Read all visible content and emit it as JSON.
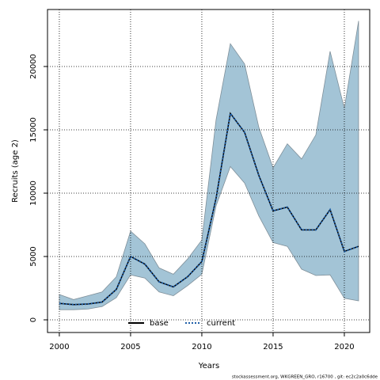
{
  "chart_data": {
    "type": "line",
    "x_label": "Years",
    "y_label": "Recruits (age 2)",
    "footer": "stockassessment.org, WKGREEN_GRO, r16700 , git: ec2c2a0c6dde",
    "x": [
      2000,
      2001,
      2002,
      2003,
      2004,
      2005,
      2006,
      2007,
      2008,
      2009,
      2010,
      2011,
      2012,
      2013,
      2014,
      2015,
      2016,
      2017,
      2018,
      2019,
      2020,
      2021
    ],
    "series": [
      {
        "name": "base",
        "color": "#000000",
        "style": "solid",
        "values": [
          1300,
          1200,
          1250,
          1400,
          2400,
          5000,
          4400,
          3000,
          2600,
          3400,
          4600,
          9600,
          16300,
          14800,
          11400,
          8600,
          8900,
          7100,
          7100,
          8700,
          5400,
          5800
        ]
      },
      {
        "name": "current",
        "color": "#1f5fa8",
        "style": "dotted",
        "values": [
          1300,
          1200,
          1250,
          1400,
          2400,
          5000,
          4400,
          3000,
          2600,
          3400,
          4600,
          9600,
          16300,
          14800,
          11400,
          8600,
          8900,
          7100,
          7100,
          8700,
          5400,
          5800
        ]
      }
    ],
    "band": {
      "color": "#a3c4d6",
      "upper": [
        2000,
        1600,
        1900,
        2200,
        3400,
        7000,
        6000,
        4100,
        3600,
        4800,
        6300,
        15800,
        21800,
        20200,
        15200,
        12000,
        13900,
        12700,
        14600,
        21200,
        16700,
        23600
      ],
      "lower": [
        800,
        800,
        850,
        1050,
        1750,
        3550,
        3300,
        2200,
        1900,
        2700,
        3600,
        9000,
        12100,
        10800,
        8200,
        6100,
        5800,
        4000,
        3500,
        3550,
        1700,
        1500
      ]
    },
    "xlim": [
      1999.17,
      2021.78
    ],
    "xticks": [
      2000,
      2005,
      2010,
      2015,
      2020
    ],
    "ylim": [
      -1000,
      24500
    ],
    "yticks": [
      0,
      5000,
      10000,
      15000,
      20000
    ],
    "grid": true,
    "legend": "bottom"
  }
}
